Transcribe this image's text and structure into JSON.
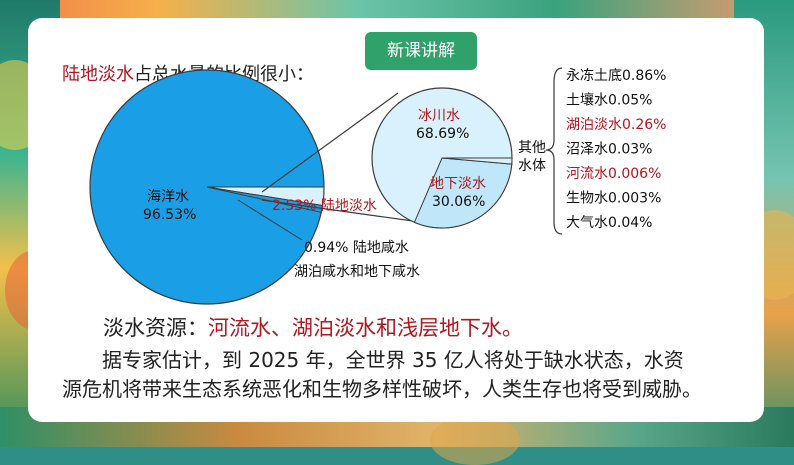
{
  "lesson_tag": "新课讲解",
  "heading": {
    "highlight": "陆地淡水",
    "rest": "占总水量的比例很小："
  },
  "chart_data": {
    "type": "pie",
    "pies": [
      {
        "slices": [
          {
            "label": "海洋水",
            "value": 96.53,
            "display": "96.53%"
          },
          {
            "label": "陆地淡水",
            "value": 2.53,
            "display": "2.53%"
          },
          {
            "label": "陆地咸水 湖泊咸水和地下咸水",
            "value": 0.94,
            "display": "0.94%"
          }
        ]
      },
      {
        "slices": [
          {
            "label": "冰川水",
            "value": 68.69,
            "display": "68.69%"
          },
          {
            "label": "地下淡水",
            "value": 30.06,
            "display": "30.06%"
          },
          {
            "label": "其他水体",
            "value": 1.25
          }
        ]
      }
    ],
    "other_water": [
      {
        "label": "永冻土底",
        "value": 0.86,
        "display": "0.86%",
        "highlight": false
      },
      {
        "label": "土壤水",
        "value": 0.05,
        "display": "0.05%",
        "highlight": false
      },
      {
        "label": "湖泊淡水",
        "value": 0.26,
        "display": "0.26%",
        "highlight": true
      },
      {
        "label": "沼泽水",
        "value": 0.03,
        "display": "0.03%",
        "highlight": false
      },
      {
        "label": "河流水",
        "value": 0.006,
        "display": "0.006%",
        "highlight": true
      },
      {
        "label": "生物水",
        "value": 0.003,
        "display": "0.003%",
        "highlight": false
      },
      {
        "label": "大气水",
        "value": 0.04,
        "display": "0.04%",
        "highlight": false
      }
    ]
  },
  "labels": {
    "ocean": "海洋水",
    "ocean_pct": "96.53%",
    "fresh": "2.53%  陆地淡水",
    "saline_line1": "0.94%  陆地咸水",
    "saline_line2": "湖泊咸水和地下咸水",
    "glacier": "冰川水",
    "glacier_pct": "68.69%",
    "ground": "地下淡水",
    "ground_pct": "30.06%",
    "other_line1": "其他",
    "other_line2": "水体"
  },
  "resource": {
    "prefix": "淡水资源：",
    "highlight": "河流水、湖泊淡水和浅层地下水。"
  },
  "paragraph": {
    "line1": "据专家估计，到 2025 年，全世界 35 亿人将处于缺水状态，水资",
    "line2": "源危机将带来生态系统恶化和生物多样性破坏，人类生存也将受到威胁。"
  },
  "colors": {
    "ocean": "#1a9ee6",
    "small_pie": "#d9f1fc",
    "ground_slice": "#bfe6f9",
    "highlight_red": "#b3161b",
    "tag_green": "#2ea26a"
  }
}
